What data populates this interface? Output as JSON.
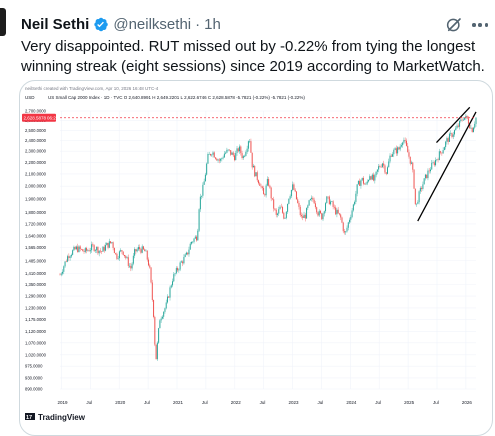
{
  "tweet": {
    "author_name": "Neil Sethi",
    "handle": "@neilksethi",
    "separator": "·",
    "time": "1h",
    "text": "Very disappointed. RUT missed out by -0.22% from tying the longest winning streak (eight sessions) since 2019 according to MarketWatch.",
    "verified_color": "#1d9bf0"
  },
  "chart_data": {
    "type": "candlestick",
    "credit": "neilSethi created with TradingView.com, Apr 10, 2026 16:48 UTC-4",
    "symbol_line": "US Small Cap 2000 Index · 1D · TVC  O 2,640.8991  H 2,649.2201  L 2,622.6746  C 2,628.5878  -5.7821 (-0.22%)  -5.7821 (-0.22%)",
    "currency": "USD",
    "price_label": "2,628.5878",
    "price_time": "06:27",
    "price_value": 2628.59,
    "y_ticks": [
      2700,
      2600,
      2500,
      2400,
      2300,
      2200,
      2100,
      2000,
      1900,
      1800,
      1720,
      1640,
      1565,
      1485,
      1410,
      1350,
      1290,
      1230,
      1175,
      1120,
      1070,
      1020,
      975,
      930,
      890
    ],
    "y_tick_labels": [
      "2,700.0000",
      "2,600.0000",
      "2,500.0000",
      "2,400.0000",
      "2,300.0000",
      "2,200.0000",
      "2,100.0000",
      "2,000.0000",
      "1,900.0000",
      "1,800.0000",
      "1,720.0000",
      "1,640.0000",
      "1,565.0000",
      "1,485.0000",
      "1,410.0000",
      "1,350.0000",
      "1,290.0000",
      "1,230.0000",
      "1,175.0000",
      "1,120.0000",
      "1,070.0000",
      "1,020.0000",
      "975.0000",
      "930.0000",
      "890.0000"
    ],
    "x_ticks": [
      "2019",
      "Jul",
      "2020",
      "Jul",
      "2021",
      "Jul",
      "2022",
      "Jul",
      "2023",
      "Jul",
      "2024",
      "Jul",
      "2025",
      "Jul",
      "2026"
    ],
    "log_scale": true,
    "grid": true,
    "up_color": "#26a69a",
    "down_color": "#ef5350",
    "line_color": "#000000",
    "price_color": "#f23645",
    "series_path": [
      [
        0.0,
        1405
      ],
      [
        0.02,
        1520
      ],
      [
        0.04,
        1560
      ],
      [
        0.06,
        1540
      ],
      [
        0.08,
        1570
      ],
      [
        0.1,
        1540
      ],
      [
        0.11,
        1575
      ],
      [
        0.125,
        1600
      ],
      [
        0.135,
        1510
      ],
      [
        0.15,
        1550
      ],
      [
        0.17,
        1440
      ],
      [
        0.18,
        1540
      ],
      [
        0.19,
        1560
      ],
      [
        0.205,
        1540
      ],
      [
        0.215,
        1450
      ],
      [
        0.225,
        1200
      ],
      [
        0.23,
        990
      ],
      [
        0.24,
        1180
      ],
      [
        0.255,
        1240
      ],
      [
        0.27,
        1380
      ],
      [
        0.29,
        1470
      ],
      [
        0.305,
        1520
      ],
      [
        0.315,
        1600
      ],
      [
        0.33,
        1640
      ],
      [
        0.335,
        1880
      ],
      [
        0.345,
        2000
      ],
      [
        0.355,
        2240
      ],
      [
        0.365,
        2300
      ],
      [
        0.375,
        2250
      ],
      [
        0.385,
        2210
      ],
      [
        0.395,
        2280
      ],
      [
        0.405,
        2300
      ],
      [
        0.42,
        2250
      ],
      [
        0.43,
        2330
      ],
      [
        0.44,
        2240
      ],
      [
        0.45,
        2360
      ],
      [
        0.455,
        2450
      ],
      [
        0.462,
        2180
      ],
      [
        0.47,
        2090
      ],
      [
        0.48,
        2030
      ],
      [
        0.49,
        1920
      ],
      [
        0.5,
        2050
      ],
      [
        0.51,
        1880
      ],
      [
        0.52,
        1770
      ],
      [
        0.53,
        1840
      ],
      [
        0.54,
        1760
      ],
      [
        0.55,
        1920
      ],
      [
        0.56,
        2000
      ],
      [
        0.57,
        1880
      ],
      [
        0.58,
        1760
      ],
      [
        0.59,
        1780
      ],
      [
        0.6,
        1880
      ],
      [
        0.61,
        1900
      ],
      [
        0.62,
        1800
      ],
      [
        0.63,
        1770
      ],
      [
        0.64,
        1900
      ],
      [
        0.65,
        1880
      ],
      [
        0.66,
        1820
      ],
      [
        0.675,
        1760
      ],
      [
        0.685,
        1640
      ],
      [
        0.695,
        1750
      ],
      [
        0.705,
        1850
      ],
      [
        0.715,
        2000
      ],
      [
        0.725,
        2060
      ],
      [
        0.735,
        2000
      ],
      [
        0.745,
        2100
      ],
      [
        0.755,
        2040
      ],
      [
        0.765,
        2150
      ],
      [
        0.775,
        2200
      ],
      [
        0.785,
        2110
      ],
      [
        0.795,
        2280
      ],
      [
        0.805,
        2300
      ],
      [
        0.815,
        2320
      ],
      [
        0.825,
        2430
      ],
      [
        0.835,
        2300
      ],
      [
        0.845,
        2180
      ],
      [
        0.85,
        2060
      ],
      [
        0.855,
        1820
      ],
      [
        0.86,
        1900
      ],
      [
        0.87,
        2000
      ],
      [
        0.88,
        2080
      ],
      [
        0.89,
        2150
      ],
      [
        0.9,
        2200
      ],
      [
        0.91,
        2260
      ],
      [
        0.92,
        2320
      ],
      [
        0.93,
        2400
      ],
      [
        0.94,
        2450
      ],
      [
        0.95,
        2500
      ],
      [
        0.96,
        2560
      ],
      [
        0.97,
        2640
      ],
      [
        0.98,
        2610
      ],
      [
        0.99,
        2500
      ],
      [
        1.0,
        2628
      ]
    ],
    "trendline_upper": [
      [
        0.905,
        2380
      ],
      [
        0.985,
        2740
      ]
    ],
    "trendline_lower": [
      [
        0.86,
        1740
      ],
      [
        1.0,
        2690
      ]
    ]
  },
  "watermark": {
    "brand": "TradingView",
    "logo_text": "17"
  }
}
